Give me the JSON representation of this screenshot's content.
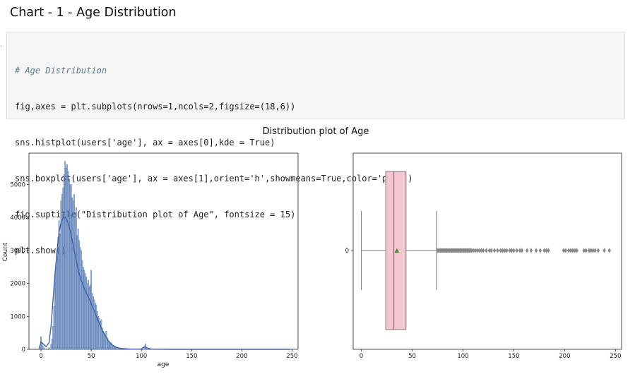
{
  "page": {
    "heading": "Chart - 1 - Age Distribution"
  },
  "code_cell": {
    "lines": [
      "# Age Distribution",
      "fig,axes = plt.subplots(nrows=1,ncols=2,figsize=(18,6))",
      "sns.histplot(users['age'], ax = axes[0],kde = True)",
      "sns.boxplot(users['age'], ax = axes[1],orient='h',showmeans=True,color='pink')",
      "fig.suptitle(\"Distribution plot of Age\", fontsize = 15)",
      "plt.show()"
    ]
  },
  "figure": {
    "suptitle": "Distribution plot of Age"
  },
  "chart_data": [
    {
      "type": "bar",
      "subtype": "histogram-with-kde",
      "xlabel": "age",
      "ylabel": "Count",
      "xlim": [
        -12,
        256
      ],
      "ylim": [
        0,
        5950
      ],
      "xticks": [
        0,
        50,
        100,
        150,
        200,
        250
      ],
      "yticks": [
        0,
        1000,
        2000,
        3000,
        4000,
        5000
      ],
      "bar_color": "#4c72b0",
      "kde_color": "#3a64a8",
      "bins": [
        {
          "x": 0,
          "y": 380
        },
        {
          "x": 1,
          "y": 200
        },
        {
          "x": 2,
          "y": 90
        },
        {
          "x": 3,
          "y": 40
        },
        {
          "x": 8,
          "y": 50
        },
        {
          "x": 10,
          "y": 150
        },
        {
          "x": 11,
          "y": 320
        },
        {
          "x": 12,
          "y": 700
        },
        {
          "x": 13,
          "y": 1300
        },
        {
          "x": 14,
          "y": 2200
        },
        {
          "x": 15,
          "y": 2500
        },
        {
          "x": 16,
          "y": 3000
        },
        {
          "x": 17,
          "y": 3400
        },
        {
          "x": 18,
          "y": 3900
        },
        {
          "x": 19,
          "y": 3500
        },
        {
          "x": 20,
          "y": 4500
        },
        {
          "x": 21,
          "y": 4700
        },
        {
          "x": 22,
          "y": 4900
        },
        {
          "x": 23,
          "y": 5300
        },
        {
          "x": 24,
          "y": 5700
        },
        {
          "x": 25,
          "y": 5500
        },
        {
          "x": 26,
          "y": 5600
        },
        {
          "x": 27,
          "y": 5400
        },
        {
          "x": 28,
          "y": 5150
        },
        {
          "x": 29,
          "y": 5000
        },
        {
          "x": 30,
          "y": 5000
        },
        {
          "x": 31,
          "y": 4600
        },
        {
          "x": 32,
          "y": 4500
        },
        {
          "x": 33,
          "y": 4700
        },
        {
          "x": 34,
          "y": 4150
        },
        {
          "x": 35,
          "y": 4300
        },
        {
          "x": 36,
          "y": 3450
        },
        {
          "x": 37,
          "y": 3650
        },
        {
          "x": 38,
          "y": 3300
        },
        {
          "x": 39,
          "y": 3100
        },
        {
          "x": 40,
          "y": 3000
        },
        {
          "x": 41,
          "y": 2700
        },
        {
          "x": 42,
          "y": 2500
        },
        {
          "x": 43,
          "y": 2400
        },
        {
          "x": 44,
          "y": 2300
        },
        {
          "x": 45,
          "y": 2200
        },
        {
          "x": 46,
          "y": 2000
        },
        {
          "x": 47,
          "y": 2100
        },
        {
          "x": 48,
          "y": 1900
        },
        {
          "x": 49,
          "y": 1950
        },
        {
          "x": 50,
          "y": 2400
        },
        {
          "x": 51,
          "y": 1700
        },
        {
          "x": 52,
          "y": 1600
        },
        {
          "x": 53,
          "y": 1500
        },
        {
          "x": 54,
          "y": 1400
        },
        {
          "x": 55,
          "y": 1350
        },
        {
          "x": 56,
          "y": 1150
        },
        {
          "x": 57,
          "y": 1000
        },
        {
          "x": 58,
          "y": 950
        },
        {
          "x": 59,
          "y": 850
        },
        {
          "x": 60,
          "y": 900
        },
        {
          "x": 61,
          "y": 650
        },
        {
          "x": 62,
          "y": 550
        },
        {
          "x": 63,
          "y": 500
        },
        {
          "x": 64,
          "y": 450
        },
        {
          "x": 65,
          "y": 550
        },
        {
          "x": 66,
          "y": 350
        },
        {
          "x": 67,
          "y": 280
        },
        {
          "x": 68,
          "y": 230
        },
        {
          "x": 69,
          "y": 180
        },
        {
          "x": 70,
          "y": 200
        },
        {
          "x": 71,
          "y": 130
        },
        {
          "x": 72,
          "y": 100
        },
        {
          "x": 73,
          "y": 80
        },
        {
          "x": 74,
          "y": 60
        },
        {
          "x": 75,
          "y": 50
        },
        {
          "x": 77,
          "y": 35
        },
        {
          "x": 80,
          "y": 25
        },
        {
          "x": 85,
          "y": 12
        },
        {
          "x": 90,
          "y": 8
        },
        {
          "x": 103,
          "y": 60
        },
        {
          "x": 104,
          "y": 160
        },
        {
          "x": 105,
          "y": 60
        }
      ],
      "kde": [
        [
          -2,
          0
        ],
        [
          0,
          220
        ],
        [
          2,
          170
        ],
        [
          5,
          80
        ],
        [
          8,
          200
        ],
        [
          10,
          700
        ],
        [
          12,
          1500
        ],
        [
          14,
          2300
        ],
        [
          16,
          3000
        ],
        [
          18,
          3550
        ],
        [
          20,
          3850
        ],
        [
          22,
          3980
        ],
        [
          24,
          4000
        ],
        [
          26,
          3900
        ],
        [
          28,
          3720
        ],
        [
          30,
          3450
        ],
        [
          32,
          3150
        ],
        [
          34,
          2850
        ],
        [
          36,
          2550
        ],
        [
          38,
          2280
        ],
        [
          40,
          2080
        ],
        [
          43,
          1850
        ],
        [
          46,
          1650
        ],
        [
          49,
          1450
        ],
        [
          52,
          1230
        ],
        [
          55,
          1000
        ],
        [
          58,
          780
        ],
        [
          61,
          580
        ],
        [
          64,
          400
        ],
        [
          67,
          260
        ],
        [
          70,
          150
        ],
        [
          75,
          60
        ],
        [
          80,
          25
        ],
        [
          90,
          5
        ],
        [
          100,
          10
        ],
        [
          103,
          80
        ],
        [
          105,
          50
        ],
        [
          110,
          3
        ],
        [
          130,
          0
        ],
        [
          248,
          0
        ]
      ]
    },
    {
      "type": "box",
      "orient": "h",
      "xlim": [
        -8,
        256
      ],
      "xticks": [
        0,
        50,
        100,
        150,
        200,
        250
      ],
      "yticks": [
        0
      ],
      "box_color": "#f4c6cf",
      "edge_color": "#7a7a7a",
      "mean_color": "#3a8a2a",
      "whisker_low": 0,
      "q1": 24,
      "median": 32,
      "q3": 44,
      "whisker_high": 74,
      "mean": 35,
      "outliers": [
        75,
        76,
        77,
        78,
        79,
        80,
        81,
        82,
        83,
        84,
        85,
        86,
        87,
        88,
        89,
        90,
        91,
        92,
        93,
        94,
        95,
        96,
        97,
        98,
        99,
        100,
        101,
        102,
        103,
        104,
        105,
        106,
        107,
        108,
        110,
        112,
        114,
        116,
        118,
        120,
        123,
        126,
        128,
        131,
        134,
        137,
        139,
        141,
        143,
        146,
        148,
        150,
        153,
        156,
        158,
        163,
        167,
        172,
        176,
        180,
        182,
        184,
        199,
        201,
        204,
        206,
        208,
        210,
        212,
        219,
        221,
        224,
        226,
        228,
        230,
        233,
        239,
        244
      ]
    }
  ]
}
